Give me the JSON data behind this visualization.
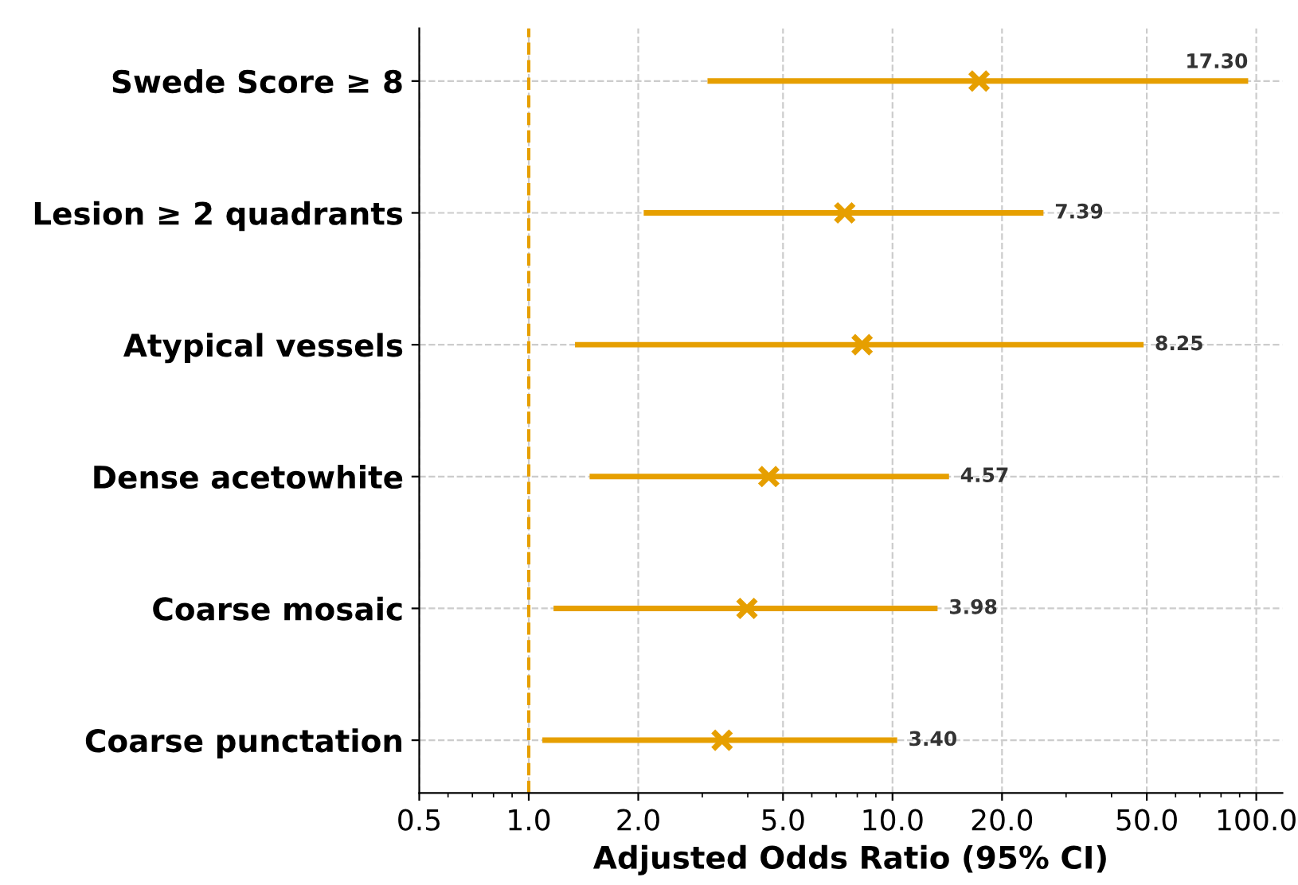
{
  "chart_data": {
    "type": "scatter",
    "orientation": "horizontal",
    "xlabel": "Adjusted Odds Ratio (95% CI)",
    "categories": [
      "Swede Score ≥ 8",
      "Lesion ≥ 2 quadrants",
      "Atypical vessels",
      "Dense acetowhite",
      "Coarse mosaic",
      "Coarse punctation"
    ],
    "series": [
      {
        "color": "#e69f00",
        "values": [
          17.3,
          7.39,
          8.25,
          4.57,
          3.98,
          3.4
        ],
        "errors": [
          [
            3.1,
            95
          ],
          [
            2.07,
            26
          ],
          [
            1.34,
            49
          ],
          [
            1.47,
            14.3
          ],
          [
            1.17,
            13.3
          ],
          [
            1.09,
            10.3
          ]
        ]
      }
    ],
    "annotations": [
      "17.30",
      "7.39",
      "8.25",
      "4.57",
      "3.98",
      "3.40"
    ],
    "log": "x",
    "marker": "cross",
    "grid": true,
    "xlim": [
      0.5,
      118
    ],
    "xticks": [
      {
        "value": 0.5,
        "label": "0.5"
      },
      {
        "value": 1,
        "label": "1.0"
      },
      {
        "value": 2,
        "label": "2.0"
      },
      {
        "value": 5,
        "label": "5.0"
      },
      {
        "value": 10,
        "label": "10.0"
      },
      {
        "value": 20,
        "label": "20.0"
      },
      {
        "value": 50,
        "label": "50.0"
      },
      {
        "value": 100,
        "label": "100.0"
      }
    ],
    "ref_lines": [
      {
        "axis": "x",
        "value": 1,
        "color": "#e69f00",
        "line_style": "dashed"
      }
    ]
  }
}
